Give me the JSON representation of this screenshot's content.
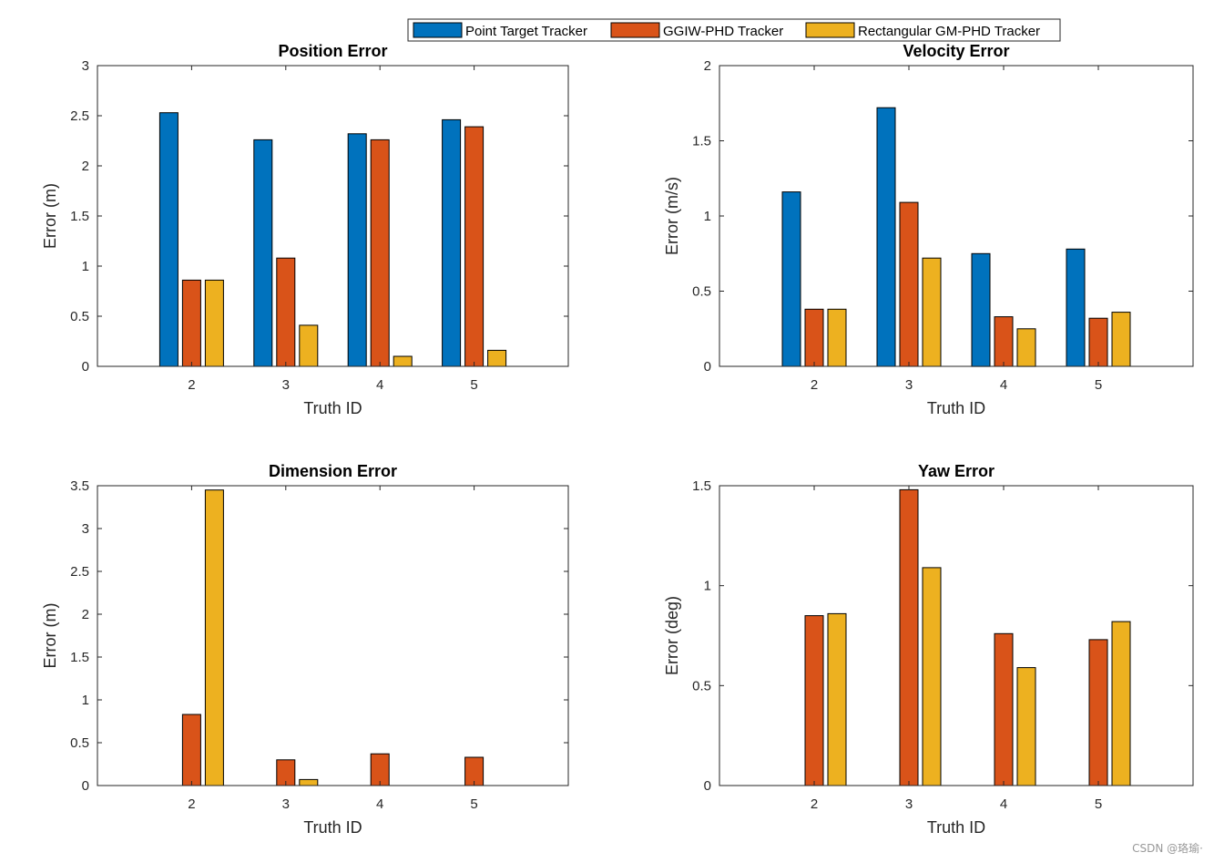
{
  "legend": {
    "entries": [
      {
        "name": "Point Target Tracker",
        "color": "#0072BD"
      },
      {
        "name": "GGIW-PHD Tracker",
        "color": "#D95319"
      },
      {
        "name": "Rectangular GM-PHD Tracker",
        "color": "#EDB120"
      }
    ]
  },
  "watermark": "CSDN @珞瑜·",
  "chart_data": [
    {
      "type": "bar",
      "title": "Position Error",
      "xlabel": "Truth ID",
      "ylabel": "Error (m)",
      "categories": [
        "2",
        "3",
        "4",
        "5"
      ],
      "ylim": [
        0,
        3
      ],
      "yticks": [
        "0",
        "0.5",
        "1",
        "1.5",
        "2",
        "2.5",
        "3"
      ],
      "ytick_values": [
        0,
        0.5,
        1,
        1.5,
        2,
        2.5,
        3
      ],
      "series": [
        {
          "name": "Point Target Tracker",
          "values": [
            2.53,
            2.26,
            2.32,
            2.46
          ]
        },
        {
          "name": "GGIW-PHD Tracker",
          "values": [
            0.86,
            1.08,
            2.26,
            2.39
          ]
        },
        {
          "name": "Rectangular GM-PHD Tracker",
          "values": [
            0.86,
            0.41,
            0.1,
            0.16
          ]
        }
      ]
    },
    {
      "type": "bar",
      "title": "Velocity Error",
      "xlabel": "Truth ID",
      "ylabel": "Error (m/s)",
      "categories": [
        "2",
        "3",
        "4",
        "5"
      ],
      "ylim": [
        0,
        2
      ],
      "yticks": [
        "0",
        "0.5",
        "1",
        "1.5",
        "2"
      ],
      "ytick_values": [
        0,
        0.5,
        1,
        1.5,
        2
      ],
      "series": [
        {
          "name": "Point Target Tracker",
          "values": [
            1.16,
            1.72,
            0.75,
            0.78
          ]
        },
        {
          "name": "GGIW-PHD Tracker",
          "values": [
            0.38,
            1.09,
            0.33,
            0.32
          ]
        },
        {
          "name": "Rectangular GM-PHD Tracker",
          "values": [
            0.38,
            0.72,
            0.25,
            0.36
          ]
        }
      ]
    },
    {
      "type": "bar",
      "title": "Dimension Error",
      "xlabel": "Truth ID",
      "ylabel": "Error (m)",
      "categories": [
        "2",
        "3",
        "4",
        "5"
      ],
      "ylim": [
        0,
        3.5
      ],
      "yticks": [
        "0",
        "0.5",
        "1",
        "1.5",
        "2",
        "2.5",
        "3",
        "3.5"
      ],
      "ytick_values": [
        0,
        0.5,
        1,
        1.5,
        2,
        2.5,
        3,
        3.5
      ],
      "series": [
        {
          "name": "Point Target Tracker",
          "values": [
            0,
            0,
            0,
            0
          ]
        },
        {
          "name": "GGIW-PHD Tracker",
          "values": [
            0.83,
            0.3,
            0.37,
            0.33
          ]
        },
        {
          "name": "Rectangular GM-PHD Tracker",
          "values": [
            3.45,
            0.07,
            0,
            0
          ]
        }
      ]
    },
    {
      "type": "bar",
      "title": "Yaw Error",
      "xlabel": "Truth ID",
      "ylabel": "Error (deg)",
      "categories": [
        "2",
        "3",
        "4",
        "5"
      ],
      "ylim": [
        0,
        1.5
      ],
      "yticks": [
        "0",
        "0.5",
        "1",
        "1.5"
      ],
      "ytick_values": [
        0,
        0.5,
        1,
        1.5
      ],
      "series": [
        {
          "name": "Point Target Tracker",
          "values": [
            0,
            0,
            0,
            0
          ]
        },
        {
          "name": "GGIW-PHD Tracker",
          "values": [
            0.85,
            1.48,
            0.76,
            0.73
          ]
        },
        {
          "name": "Rectangular GM-PHD Tracker",
          "values": [
            0.86,
            1.09,
            0.59,
            0.82
          ]
        }
      ]
    }
  ]
}
